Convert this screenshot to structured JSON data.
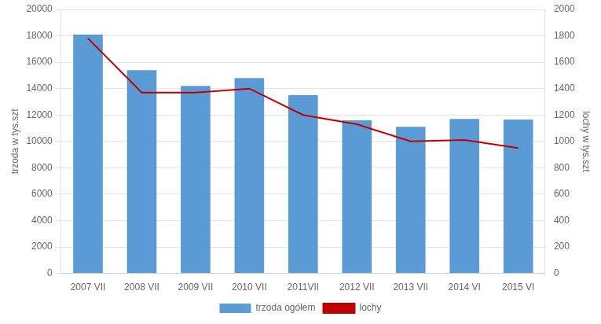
{
  "chart_data": {
    "type": "bar",
    "categories": [
      "2007 VII",
      "2008 VII",
      "2009 VII",
      "2010 VII",
      "2011VII",
      "2012 VII",
      "2013 VII",
      "2014 VI",
      "2015 VI"
    ],
    "series": [
      {
        "name": "trzoda ogółem",
        "type": "bar",
        "color": "#5B9BD5",
        "values": [
          18100,
          15400,
          14200,
          14800,
          13500,
          11600,
          11100,
          11700,
          11650
        ]
      },
      {
        "name": "lochy",
        "type": "line",
        "color": "#C00000",
        "axis": "y2",
        "values": [
          1780,
          1370,
          1370,
          1400,
          1200,
          1130,
          1000,
          1010,
          950
        ]
      }
    ],
    "ylabel": "trzoda w tys.szt",
    "y2label": "lochy w tys.szt",
    "ylim": [
      0,
      20000
    ],
    "yticks": [
      0,
      2000,
      4000,
      6000,
      8000,
      10000,
      12000,
      14000,
      16000,
      18000,
      20000
    ],
    "y2lim": [
      0,
      2000
    ],
    "y2ticks": [
      0,
      200,
      400,
      600,
      800,
      1000,
      1200,
      1400,
      1600,
      1800,
      2000
    ],
    "grid": true,
    "legend": "bottom"
  }
}
